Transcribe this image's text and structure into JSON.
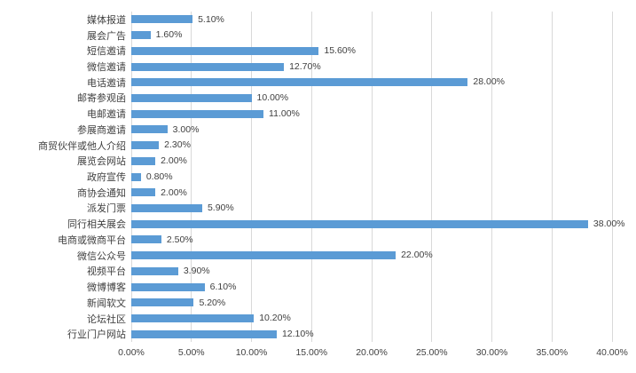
{
  "chart_data": {
    "type": "bar",
    "orientation": "horizontal",
    "title": "",
    "xlabel": "",
    "ylabel": "",
    "categories": [
      "媒体报道",
      "展会广告",
      "短信邀请",
      "微信邀请",
      "电话邀请",
      "邮寄参观函",
      "电邮邀请",
      "参展商邀请",
      "商贸伙伴或他人介绍",
      "展览会网站",
      "政府宣传",
      "商协会通知",
      "派发门票",
      "同行相关展会",
      "电商或微商平台",
      "微信公众号",
      "视频平台",
      "微博博客",
      "新闻软文",
      "论坛社区",
      "行业门户网站"
    ],
    "values": [
      5.1,
      1.6,
      15.6,
      12.7,
      28.0,
      10.0,
      11.0,
      3.0,
      2.3,
      2.0,
      0.8,
      2.0,
      5.9,
      38.0,
      2.5,
      22.0,
      3.9,
      6.1,
      5.2,
      10.2,
      12.1
    ],
    "value_labels": [
      "5.10%",
      "1.60%",
      "15.60%",
      "12.70%",
      "28.00%",
      "10.00%",
      "11.00%",
      "3.00%",
      "2.30%",
      "2.00%",
      "0.80%",
      "2.00%",
      "5.90%",
      "38.00%",
      "2.50%",
      "22.00%",
      "3.90%",
      "6.10%",
      "5.20%",
      "10.20%",
      "12.10%"
    ],
    "xlim": [
      0,
      40
    ],
    "x_ticks": [
      "0.00%",
      "5.00%",
      "10.00%",
      "15.00%",
      "20.00%",
      "25.00%",
      "30.00%",
      "35.00%",
      "40.00%"
    ],
    "x_tick_values": [
      0,
      5,
      10,
      15,
      20,
      25,
      30,
      35,
      40
    ],
    "grid": "vertical",
    "legend": "none",
    "colors": {
      "bar": "#5B9BD5",
      "gridline": "#D9D9D9",
      "text": "#404040",
      "background": "#FFFFFF"
    }
  }
}
